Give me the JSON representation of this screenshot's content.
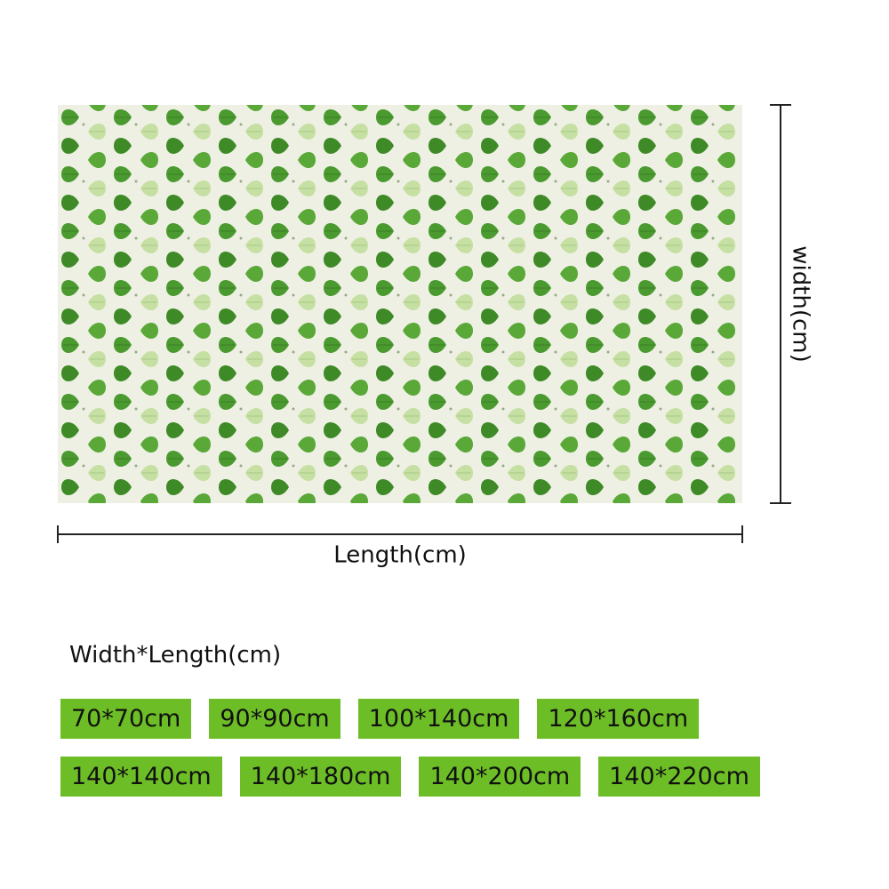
{
  "dimension_labels": {
    "vertical": "width(cm)",
    "horizontal": "Length(cm)"
  },
  "size_heading": "Width*Length(cm)",
  "sizes": [
    [
      "70*70cm",
      "90*90cm",
      "100*140cm",
      "120*160cm"
    ],
    [
      "140*140cm",
      "140*180cm",
      "140*200cm",
      "140*220cm"
    ]
  ]
}
